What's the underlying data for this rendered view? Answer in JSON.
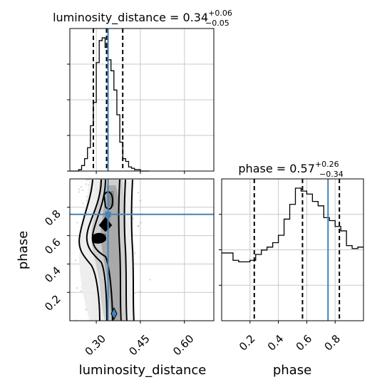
{
  "chart_data": {
    "type": "corner",
    "parameters": [
      "luminosity_distance",
      "phase"
    ],
    "truths": {
      "luminosity_distance": 0.34,
      "phase": 0.75
    },
    "colors": {
      "truth": "#4682b4",
      "hist": "#000000",
      "grid": "#c8c8c8",
      "points": "#7f7f7f"
    },
    "grid": true,
    "panels": [
      {
        "id": "ld-hist",
        "type": "histogram",
        "title": "luminosity_distance = 0.34",
        "title_sup": "+0.06",
        "title_sub": "−0.05",
        "xlim": [
          0.21,
          0.7
        ],
        "x_ticks": [
          0.3,
          0.45,
          0.6
        ],
        "quantiles": [
          0.29,
          0.335,
          0.39
        ],
        "truth": 0.34,
        "bins": [
          0.21,
          0.22,
          0.23,
          0.24,
          0.25,
          0.26,
          0.27,
          0.28,
          0.29,
          0.3,
          0.31,
          0.32,
          0.33,
          0.34,
          0.35,
          0.36,
          0.37,
          0.38,
          0.39,
          0.4,
          0.41,
          0.42,
          0.43,
          0.44,
          0.45,
          0.46,
          0.47,
          0.48
        ],
        "counts": [
          0,
          0,
          0,
          1,
          4,
          9,
          17,
          33,
          50,
          79,
          95,
          97,
          90,
          81,
          73,
          59,
          41,
          21,
          9,
          7,
          3,
          2,
          1,
          1,
          0,
          0,
          0
        ]
      },
      {
        "id": "phase-hist",
        "type": "histogram",
        "title": "phase = 0.57",
        "title_sup": "+0.26",
        "title_sub": "−0.34",
        "xlim": [
          0.0,
          1.0
        ],
        "x_ticks": [
          0.2,
          0.4,
          0.6,
          0.8
        ],
        "x_tick_labels": [
          "0.2",
          "0.4",
          "0.6",
          "0.8"
        ],
        "xlabel": "phase",
        "quantiles": [
          0.23,
          0.57,
          0.83
        ],
        "truth": 0.75,
        "bins": [
          0.0,
          0.04,
          0.08,
          0.12,
          0.16,
          0.2,
          0.24,
          0.28,
          0.32,
          0.36,
          0.4,
          0.44,
          0.48,
          0.52,
          0.56,
          0.6,
          0.64,
          0.68,
          0.72,
          0.76,
          0.8,
          0.84,
          0.88,
          0.92,
          0.96,
          1.0
        ],
        "counts": [
          46,
          46,
          41,
          40,
          40,
          41,
          45,
          48,
          50,
          53,
          58,
          69,
          79,
          90,
          88,
          86,
          81,
          78,
          70,
          68,
          64,
          61,
          51,
          49,
          50
        ]
      },
      {
        "id": "joint",
        "type": "2d-histogram",
        "xlim": [
          0.21,
          0.7
        ],
        "ylim": [
          0.0,
          1.0
        ],
        "x_ticks": [
          0.3,
          0.45,
          0.6
        ],
        "x_tick_labels": [
          "0.30",
          "0.45",
          "0.60"
        ],
        "y_ticks": [
          0.2,
          0.4,
          0.6,
          0.8
        ],
        "y_tick_labels": [
          "0.2",
          "0.4",
          "0.6",
          "0.8"
        ],
        "xlabel": "luminosity_distance",
        "ylabel": "phase",
        "truth": [
          0.34,
          0.75
        ]
      }
    ]
  }
}
